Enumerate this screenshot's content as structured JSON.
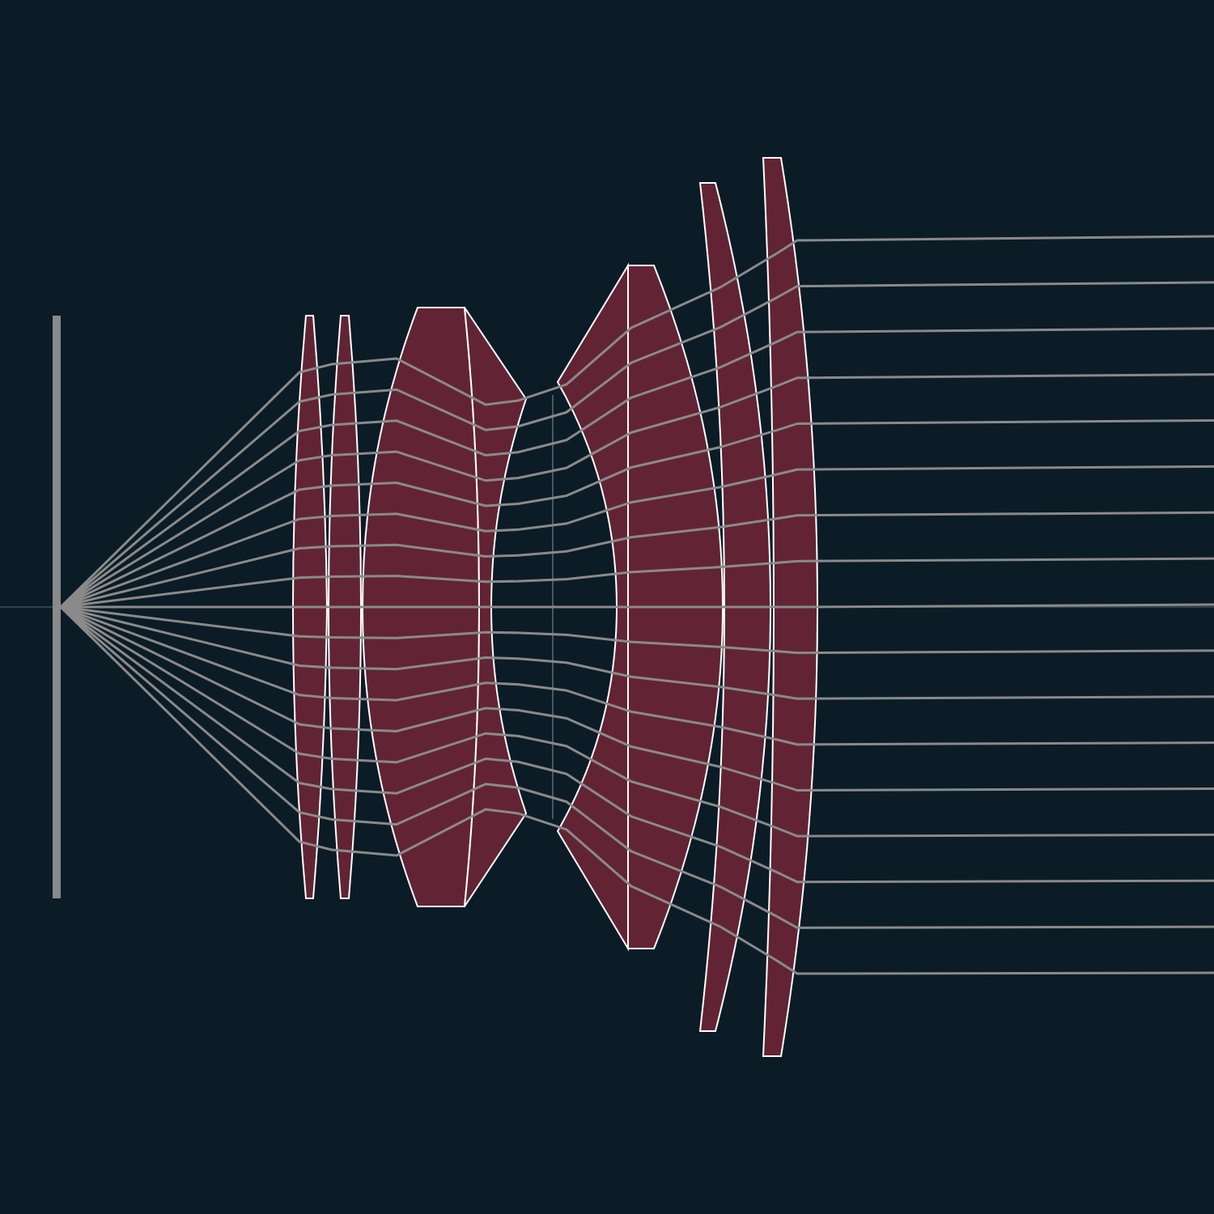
{
  "diagram": {
    "type": "optical-ray-trace",
    "colors": {
      "background": "#0b1c26",
      "lens_fill": "#622434",
      "lens_outline": "#ffffff",
      "ray": "#8a8a8a",
      "sensor": "#8a8a8a",
      "optical_axis": "#3b4e59",
      "aperture_stop": "#5a6e78"
    },
    "components": [
      "sensor-plane",
      "element-1",
      "element-2",
      "element-3-doublet",
      "aperture-stop",
      "element-4-doublet",
      "element-5",
      "element-6"
    ],
    "ray_count": 17
  }
}
